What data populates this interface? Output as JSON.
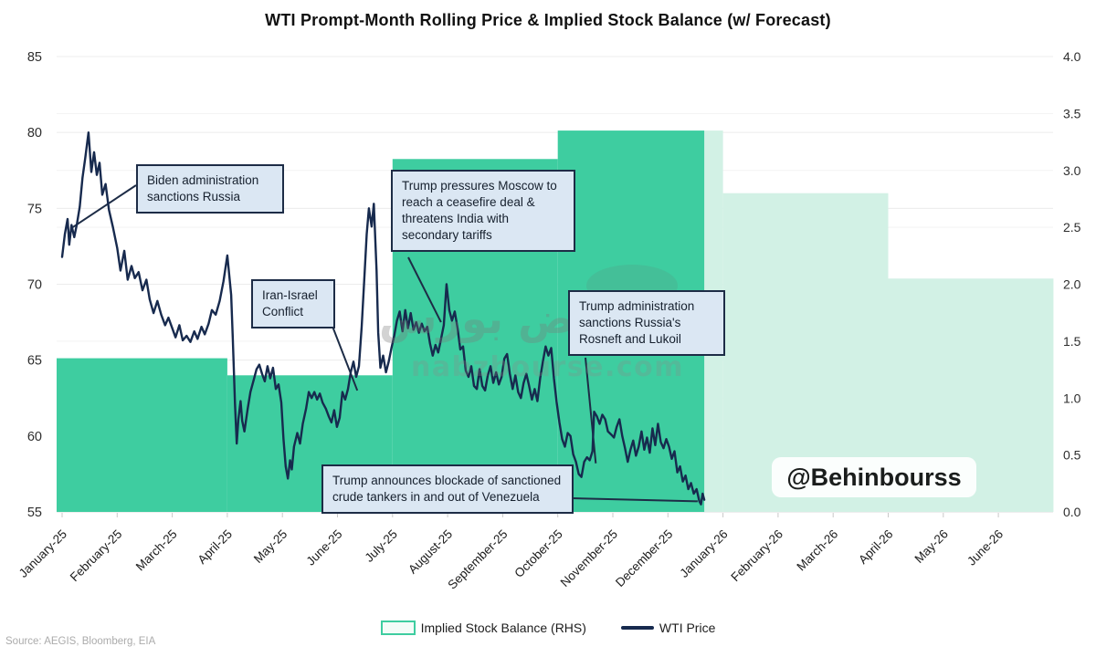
{
  "title": "WTI Prompt-Month Rolling Price & Implied Stock Balance (w/ Forecast)",
  "source_note": "Source: AEGIS, Bloomberg, EIA",
  "watermark": {
    "handle": "@Behinbourss",
    "site_fa": "نبض بورس",
    "site_en": "nabzbourse.com"
  },
  "legend": [
    {
      "label": "Implied Stock Balance (RHS)",
      "swatch": "area-outline"
    },
    {
      "label": "WTI Price",
      "swatch": "line"
    }
  ],
  "colors": {
    "balance_actual": "#3ecda0",
    "balance_forecast": "#d2f1e5",
    "price_line": "#172a4e",
    "annotation_fill": "#dbe7f3",
    "annotation_border": "#1d2c46",
    "gridline_major": "#ececec",
    "gridline_minor": "#f3f3f3",
    "axis_text": "#2e2e2e"
  },
  "axes": {
    "left": {
      "ticks": [
        85,
        80,
        75,
        70,
        65,
        60,
        55
      ]
    },
    "right": {
      "ticks": [
        "4.0",
        "3.5",
        "3.0",
        "2.5",
        "2.0",
        "1.5",
        "1.0",
        "0.5",
        "0.0"
      ]
    },
    "x": {
      "labels": [
        "January-25",
        "February-25",
        "March-25",
        "April-25",
        "May-25",
        "June-25",
        "July-25",
        "August-25",
        "September-25",
        "October-25",
        "November-25",
        "December-25",
        "January-26",
        "February-26",
        "March-26",
        "April-26",
        "May-26",
        "June-26"
      ]
    }
  },
  "annotations": [
    {
      "id": "biden",
      "text": "Biden administration\nsanctions Russia",
      "anchor_month": 0.17,
      "anchor_price": 73.7
    },
    {
      "id": "iran",
      "text": "Iran-Israel\nConflict",
      "anchor_month": 5.36,
      "anchor_price": 63.0
    },
    {
      "id": "pressures",
      "text": "Trump pressures Moscow to\nreach a ceasefire deal &\nthreatens India with\nsecondary tariffs",
      "anchor_month": 6.88,
      "anchor_price": 67.5
    },
    {
      "id": "sanctions",
      "text": "Trump administration\nsanctions Russia's\nRosneft and Lukoil",
      "anchor_month": 9.69,
      "anchor_price": 58.2
    },
    {
      "id": "venezuela",
      "text": "Trump announces blockade of sanctioned\ncrude tankers in and out of Venezuela",
      "anchor_month": 11.54,
      "anchor_price": 55.7
    }
  ],
  "chart_data": {
    "type": "line+area",
    "title": "WTI Prompt-Month Rolling Price & Implied Stock Balance (w/ Forecast)",
    "x_axis": "Months, January-2025 through June-2026 (month value 0 = Jan-25 tick)",
    "ylim_left": [
      55,
      85
    ],
    "ylim_right": [
      0.0,
      4.0
    ],
    "grid": "horizontal only",
    "legend_position": "bottom-center",
    "implied_stock_balance": {
      "name": "Implied Stock Balance (RHS)",
      "axis": "right",
      "style": "quarterly step area",
      "actual_steps": [
        {
          "period": "Q1-2025",
          "from_m": -0.1,
          "to_m": 3.0,
          "value": 1.35
        },
        {
          "period": "Q2-2025",
          "from_m": 3.0,
          "to_m": 6.0,
          "value": 1.2
        },
        {
          "period": "Q3-2025",
          "from_m": 6.0,
          "to_m": 9.0,
          "value": 3.1
        },
        {
          "period": "Q4-2025",
          "from_m": 9.0,
          "to_m": 11.66,
          "value": 3.35
        }
      ],
      "forecast_steps": [
        {
          "period": "Q4-2025 (fcst)",
          "from_m": 11.66,
          "to_m": 12.0,
          "value": 3.35
        },
        {
          "period": "Q1-2026",
          "from_m": 12.0,
          "to_m": 15.0,
          "value": 2.8
        },
        {
          "period": "Q2-2026",
          "from_m": 15.0,
          "to_m": 18.0,
          "value": 2.05
        }
      ]
    },
    "wti_price": {
      "name": "WTI Price",
      "axis": "left",
      "unit": "USD/bbl",
      "points": [
        [
          0.0,
          71.8
        ],
        [
          0.05,
          73.3
        ],
        [
          0.1,
          74.3
        ],
        [
          0.13,
          72.6
        ],
        [
          0.17,
          73.9
        ],
        [
          0.22,
          73.1
        ],
        [
          0.27,
          74.0
        ],
        [
          0.32,
          75.1
        ],
        [
          0.37,
          77.0
        ],
        [
          0.42,
          78.3
        ],
        [
          0.48,
          80.0
        ],
        [
          0.53,
          77.4
        ],
        [
          0.58,
          78.7
        ],
        [
          0.63,
          77.2
        ],
        [
          0.68,
          78.0
        ],
        [
          0.73,
          75.9
        ],
        [
          0.79,
          76.6
        ],
        [
          0.85,
          74.9
        ],
        [
          0.92,
          73.8
        ],
        [
          1.0,
          72.4
        ],
        [
          1.06,
          70.9
        ],
        [
          1.13,
          72.2
        ],
        [
          1.19,
          70.3
        ],
        [
          1.26,
          71.2
        ],
        [
          1.32,
          70.4
        ],
        [
          1.39,
          70.8
        ],
        [
          1.46,
          69.6
        ],
        [
          1.53,
          70.3
        ],
        [
          1.59,
          69.0
        ],
        [
          1.66,
          68.1
        ],
        [
          1.73,
          68.9
        ],
        [
          1.8,
          68.0
        ],
        [
          1.87,
          67.3
        ],
        [
          1.93,
          67.8
        ],
        [
          2.0,
          67.1
        ],
        [
          2.06,
          66.5
        ],
        [
          2.13,
          67.3
        ],
        [
          2.19,
          66.3
        ],
        [
          2.26,
          66.6
        ],
        [
          2.33,
          66.2
        ],
        [
          2.4,
          66.9
        ],
        [
          2.46,
          66.4
        ],
        [
          2.53,
          67.2
        ],
        [
          2.59,
          66.7
        ],
        [
          2.66,
          67.4
        ],
        [
          2.72,
          68.3
        ],
        [
          2.79,
          68.0
        ],
        [
          2.86,
          68.9
        ],
        [
          2.93,
          70.2
        ],
        [
          3.0,
          71.9
        ],
        [
          3.07,
          69.3
        ],
        [
          3.1,
          66.4
        ],
        [
          3.14,
          62.1
        ],
        [
          3.17,
          59.5
        ],
        [
          3.2,
          61.1
        ],
        [
          3.24,
          62.3
        ],
        [
          3.27,
          61.0
        ],
        [
          3.31,
          60.3
        ],
        [
          3.37,
          61.8
        ],
        [
          3.42,
          62.9
        ],
        [
          3.48,
          63.7
        ],
        [
          3.53,
          64.4
        ],
        [
          3.58,
          64.7
        ],
        [
          3.63,
          64.1
        ],
        [
          3.68,
          63.6
        ],
        [
          3.73,
          64.6
        ],
        [
          3.78,
          63.8
        ],
        [
          3.83,
          64.5
        ],
        [
          3.88,
          63.1
        ],
        [
          3.93,
          63.4
        ],
        [
          3.98,
          62.2
        ],
        [
          4.02,
          59.8
        ],
        [
          4.06,
          58.0
        ],
        [
          4.1,
          57.2
        ],
        [
          4.14,
          58.4
        ],
        [
          4.17,
          57.8
        ],
        [
          4.21,
          59.3
        ],
        [
          4.27,
          60.2
        ],
        [
          4.32,
          59.5
        ],
        [
          4.37,
          60.8
        ],
        [
          4.43,
          61.8
        ],
        [
          4.48,
          62.9
        ],
        [
          4.53,
          62.5
        ],
        [
          4.58,
          62.9
        ],
        [
          4.63,
          62.4
        ],
        [
          4.68,
          62.8
        ],
        [
          4.73,
          62.2
        ],
        [
          4.79,
          61.8
        ],
        [
          4.84,
          61.3
        ],
        [
          4.89,
          60.9
        ],
        [
          4.94,
          61.7
        ],
        [
          4.99,
          60.6
        ],
        [
          5.04,
          61.2
        ],
        [
          5.09,
          62.9
        ],
        [
          5.14,
          62.4
        ],
        [
          5.19,
          63.1
        ],
        [
          5.24,
          64.2
        ],
        [
          5.29,
          64.9
        ],
        [
          5.34,
          63.9
        ],
        [
          5.39,
          64.6
        ],
        [
          5.44,
          67.2
        ],
        [
          5.49,
          70.5
        ],
        [
          5.53,
          73.3
        ],
        [
          5.57,
          75.0
        ],
        [
          5.62,
          73.8
        ],
        [
          5.66,
          75.3
        ],
        [
          5.71,
          70.9
        ],
        [
          5.74,
          66.8
        ],
        [
          5.78,
          64.5
        ],
        [
          5.83,
          65.3
        ],
        [
          5.88,
          64.2
        ],
        [
          5.93,
          64.9
        ],
        [
          5.98,
          65.8
        ],
        [
          6.03,
          66.6
        ],
        [
          6.08,
          67.6
        ],
        [
          6.13,
          68.2
        ],
        [
          6.18,
          66.9
        ],
        [
          6.23,
          68.3
        ],
        [
          6.28,
          67.1
        ],
        [
          6.33,
          68.1
        ],
        [
          6.38,
          67.0
        ],
        [
          6.43,
          67.5
        ],
        [
          6.48,
          66.8
        ],
        [
          6.53,
          67.4
        ],
        [
          6.58,
          66.9
        ],
        [
          6.63,
          67.2
        ],
        [
          6.68,
          66.1
        ],
        [
          6.73,
          65.3
        ],
        [
          6.78,
          66.0
        ],
        [
          6.83,
          65.5
        ],
        [
          6.88,
          66.4
        ],
        [
          6.93,
          67.3
        ],
        [
          6.98,
          70.0
        ],
        [
          7.03,
          68.3
        ],
        [
          7.08,
          67.6
        ],
        [
          7.13,
          68.2
        ],
        [
          7.18,
          67.1
        ],
        [
          7.23,
          65.7
        ],
        [
          7.28,
          65.9
        ],
        [
          7.33,
          64.3
        ],
        [
          7.38,
          63.9
        ],
        [
          7.43,
          64.6
        ],
        [
          7.48,
          63.3
        ],
        [
          7.53,
          63.1
        ],
        [
          7.58,
          64.4
        ],
        [
          7.63,
          63.3
        ],
        [
          7.68,
          63.0
        ],
        [
          7.73,
          64.0
        ],
        [
          7.78,
          64.6
        ],
        [
          7.83,
          63.5
        ],
        [
          7.88,
          64.2
        ],
        [
          7.93,
          63.4
        ],
        [
          7.98,
          63.9
        ],
        [
          8.03,
          65.1
        ],
        [
          8.08,
          65.4
        ],
        [
          8.13,
          64.1
        ],
        [
          8.18,
          63.1
        ],
        [
          8.23,
          64.0
        ],
        [
          8.28,
          62.9
        ],
        [
          8.33,
          62.5
        ],
        [
          8.38,
          63.5
        ],
        [
          8.43,
          64.1
        ],
        [
          8.48,
          63.3
        ],
        [
          8.53,
          62.4
        ],
        [
          8.58,
          63.1
        ],
        [
          8.63,
          62.3
        ],
        [
          8.68,
          63.8
        ],
        [
          8.73,
          64.9
        ],
        [
          8.78,
          65.9
        ],
        [
          8.83,
          65.3
        ],
        [
          8.88,
          65.8
        ],
        [
          8.93,
          63.8
        ],
        [
          8.98,
          62.2
        ],
        [
          9.03,
          60.9
        ],
        [
          9.08,
          59.8
        ],
        [
          9.13,
          59.3
        ],
        [
          9.18,
          60.2
        ],
        [
          9.23,
          60.0
        ],
        [
          9.28,
          58.8
        ],
        [
          9.33,
          58.3
        ],
        [
          9.38,
          57.5
        ],
        [
          9.43,
          57.3
        ],
        [
          9.48,
          58.3
        ],
        [
          9.53,
          58.6
        ],
        [
          9.58,
          58.4
        ],
        [
          9.63,
          59.0
        ],
        [
          9.66,
          61.6
        ],
        [
          9.71,
          61.3
        ],
        [
          9.76,
          60.8
        ],
        [
          9.81,
          61.4
        ],
        [
          9.86,
          61.1
        ],
        [
          9.91,
          60.3
        ],
        [
          9.97,
          60.1
        ],
        [
          10.02,
          59.9
        ],
        [
          10.07,
          60.6
        ],
        [
          10.12,
          61.1
        ],
        [
          10.17,
          60.0
        ],
        [
          10.22,
          59.2
        ],
        [
          10.27,
          58.3
        ],
        [
          10.32,
          59.1
        ],
        [
          10.37,
          59.7
        ],
        [
          10.42,
          58.7
        ],
        [
          10.47,
          59.3
        ],
        [
          10.52,
          60.3
        ],
        [
          10.57,
          59.1
        ],
        [
          10.62,
          59.9
        ],
        [
          10.67,
          58.9
        ],
        [
          10.72,
          60.5
        ],
        [
          10.77,
          59.4
        ],
        [
          10.82,
          60.8
        ],
        [
          10.87,
          59.6
        ],
        [
          10.92,
          59.2
        ],
        [
          10.97,
          59.8
        ],
        [
          11.02,
          59.3
        ],
        [
          11.07,
          58.5
        ],
        [
          11.12,
          59.0
        ],
        [
          11.17,
          57.6
        ],
        [
          11.22,
          58.0
        ],
        [
          11.27,
          57.0
        ],
        [
          11.32,
          57.4
        ],
        [
          11.37,
          56.5
        ],
        [
          11.42,
          56.9
        ],
        [
          11.47,
          56.2
        ],
        [
          11.52,
          56.5
        ],
        [
          11.57,
          55.7
        ],
        [
          11.6,
          55.5
        ],
        [
          11.63,
          56.2
        ],
        [
          11.66,
          55.8
        ]
      ]
    }
  }
}
